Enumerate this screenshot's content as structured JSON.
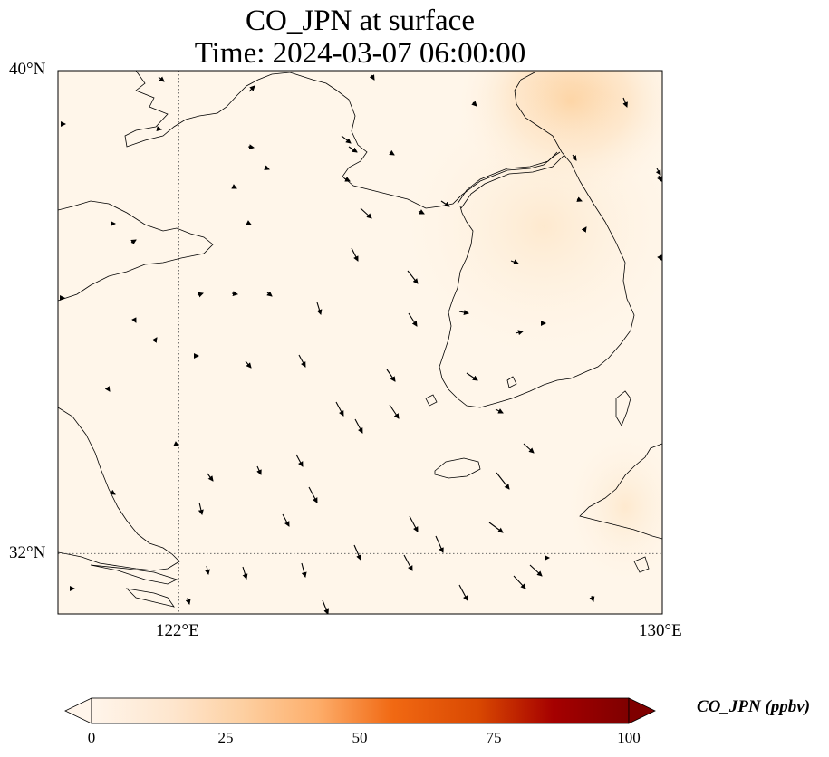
{
  "title": {
    "line1": "CO_JPN at surface",
    "line2": "Time: 2024-03-07 06:00:00"
  },
  "map": {
    "extent": {
      "lon_min": 119.5,
      "lon_max": 130,
      "lat_min": 31,
      "lat_max": 40
    },
    "gridlines": {
      "lon": [
        122
      ],
      "lat": [
        32
      ]
    },
    "lat_labels": [
      "40°N",
      "32°N"
    ],
    "lon_labels": [
      "122°E",
      "130°E"
    ],
    "colors": {
      "background": "#fff6ea",
      "plume": "#fdd9a8",
      "coastline": "#000000",
      "gridline": "#555555",
      "arrow": "#000000"
    }
  },
  "colorbar": {
    "label": "CO_JPN (ppbv)",
    "min": 0,
    "max": 100,
    "ticks": [
      "0",
      "25",
      "50",
      "75",
      "100"
    ],
    "colormap": [
      "#fff5eb",
      "#fee6ce",
      "#fdd0a2",
      "#fdae6b",
      "#fd8d3c",
      "#f16913",
      "#d94801",
      "#a50000",
      "#7f0000"
    ],
    "extend": "both"
  }
}
